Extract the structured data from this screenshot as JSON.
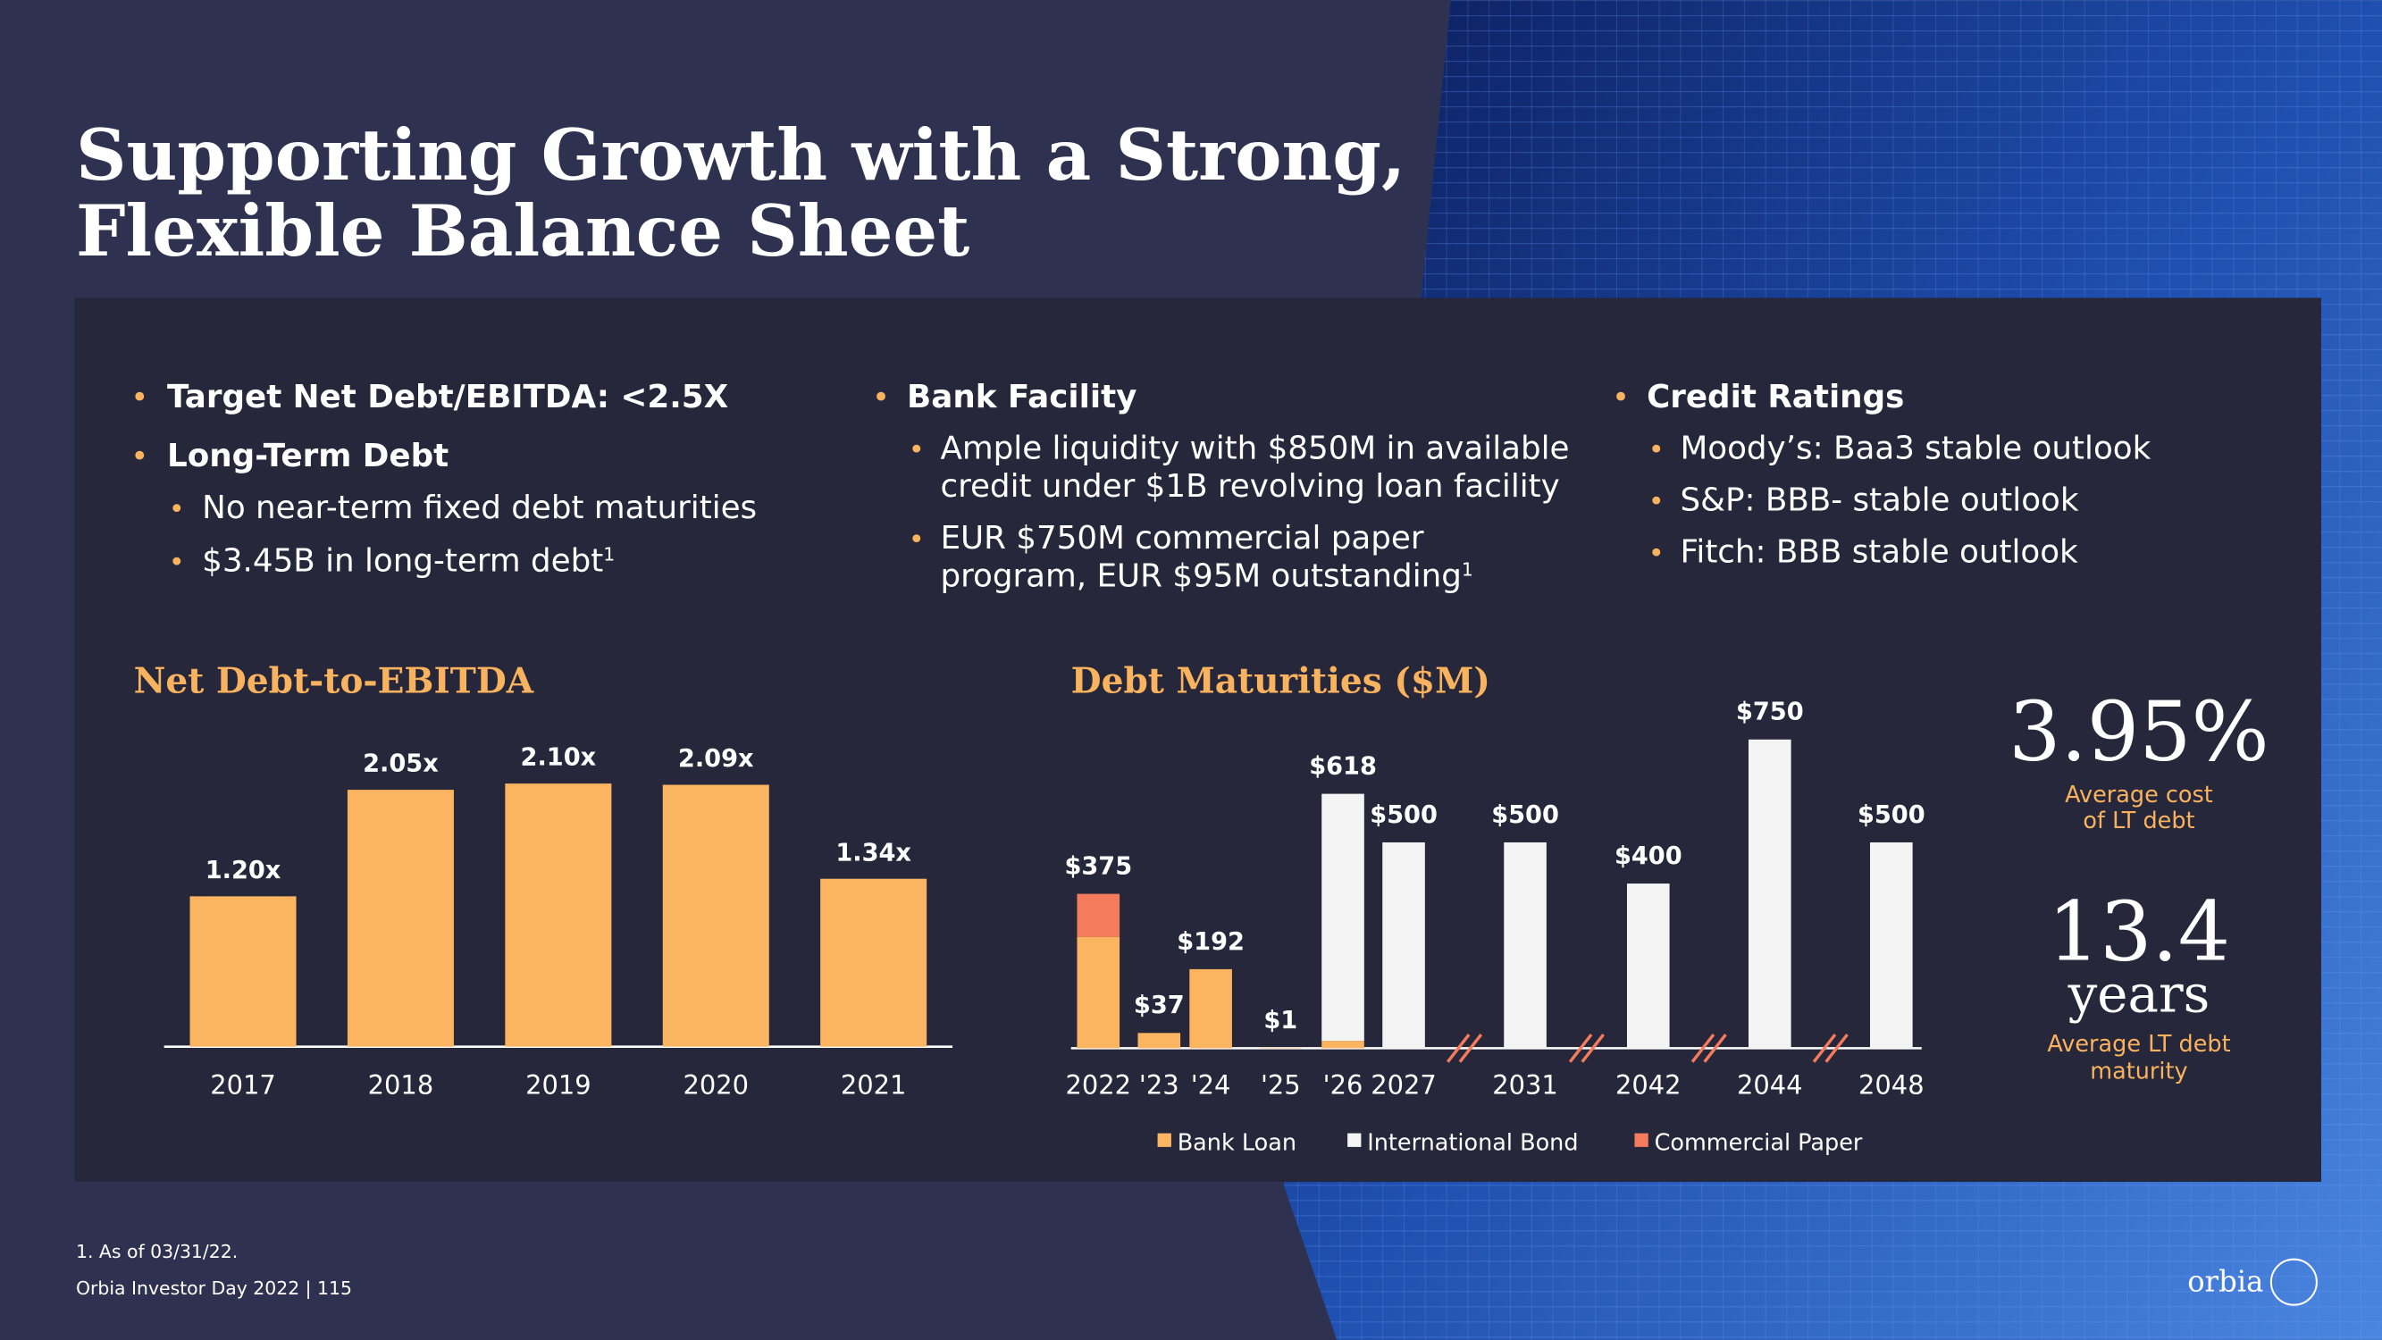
{
  "header": {
    "title_lines": [
      "Supporting Growth with a Strong,",
      "Flexible Balance Sheet"
    ]
  },
  "columns": [
    [
      {
        "text": "Target Net Debt/EBITDA: <2.5X"
      },
      {
        "text": "Long-Term Debt",
        "items": [
          {
            "lines": [
              "No near-term fixed debt maturities"
            ]
          },
          {
            "lines": [
              "$3.45B in long-term debt"
            ],
            "note": "1"
          }
        ]
      }
    ],
    [
      {
        "text": "Bank Facility",
        "items": [
          {
            "lines": [
              "Ample liquidity with $850M in available",
              "credit under $1B revolving loan facility"
            ]
          },
          {
            "lines": [
              "EUR $750M commercial paper",
              "program, EUR $95M outstanding"
            ],
            "note": "1"
          }
        ]
      }
    ],
    [
      {
        "text": "Credit Ratings",
        "items": [
          {
            "lines": [
              "Moody’s: Baa3 stable outlook"
            ]
          },
          {
            "lines": [
              "S&P: BBB- stable outlook"
            ]
          },
          {
            "lines": [
              "Fitch: BBB stable outlook"
            ]
          }
        ]
      }
    ]
  ],
  "chart_data": [
    {
      "type": "bar",
      "title": "Net Debt-to-EBITDA",
      "categories": [
        "2017",
        "2018",
        "2019",
        "2020",
        "2021"
      ],
      "values": [
        1.2,
        2.05,
        2.1,
        2.09,
        1.34
      ],
      "value_labels": [
        "1.20x",
        "2.05x",
        "2.10x",
        "2.09x",
        "1.34x"
      ],
      "color": "#fbb45f"
    },
    {
      "type": "stacked_bar",
      "title": "Debt Maturities ($M)",
      "categories": [
        "2022",
        "'23",
        "'24",
        "'25",
        "'26",
        "2027",
        "2031",
        "2042",
        "2044",
        "2048"
      ],
      "series": [
        {
          "name": "Bank Loan",
          "color": "#fbb45f",
          "values": [
            270,
            37,
            192,
            1,
            18,
            0,
            0,
            0,
            0,
            0
          ]
        },
        {
          "name": "International Bond",
          "color": "#f4f4f4",
          "values": [
            0,
            0,
            0,
            0,
            600,
            500,
            500,
            400,
            750,
            500
          ]
        },
        {
          "name": "Commercial Paper",
          "color": "#f47c5c",
          "values": [
            105,
            0,
            0,
            0,
            0,
            0,
            0,
            0,
            0,
            0
          ]
        }
      ],
      "values": [
        375,
        37,
        192,
        1,
        618,
        500,
        500,
        400,
        750,
        500
      ],
      "value_labels": [
        "$375",
        "$37",
        "$192",
        "$1",
        "$618",
        "$500",
        "$500",
        "$400",
        "$750",
        "$500"
      ]
    }
  ],
  "stats": [
    {
      "value": "3.95%",
      "label_lines": [
        "Average cost",
        "of LT debt"
      ]
    },
    {
      "value": "13.4",
      "unit": "years",
      "label_lines": [
        "Average LT debt",
        "maturity"
      ]
    }
  ],
  "footer": {
    "footnote": "1. As of 03/31/22.",
    "page": "Orbia Investor Day 2022 | 115"
  },
  "logo": "orbia"
}
